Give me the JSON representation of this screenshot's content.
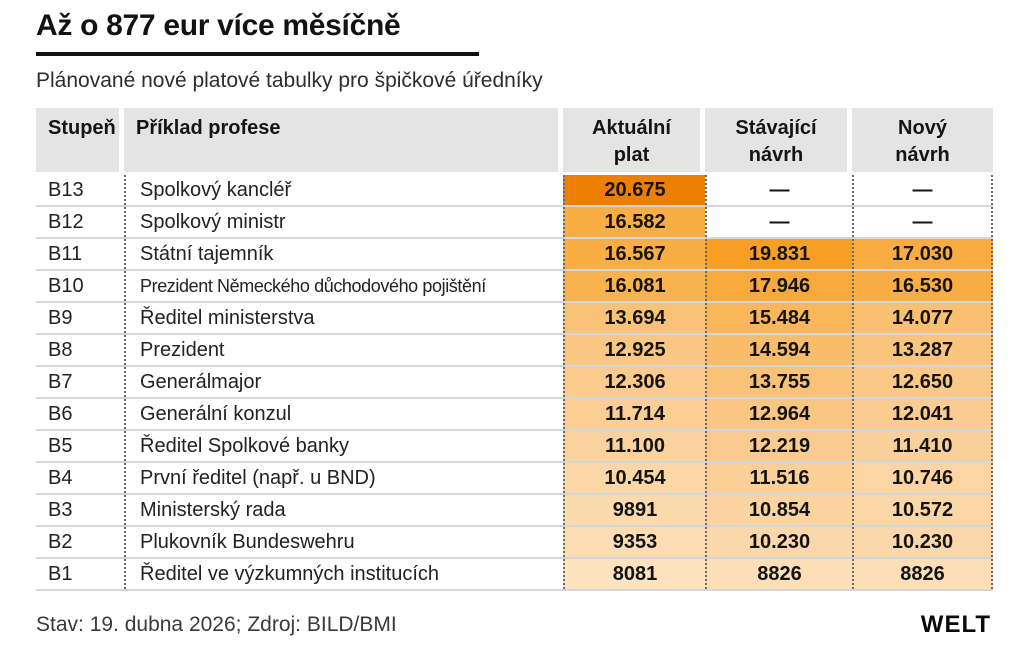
{
  "header": {
    "title": "Až o 877 eur více měsíčně",
    "subtitle": "Plánované nové platové tabulky pro špičkové úředníky"
  },
  "footer": {
    "source": "Stav: 19. dubna 2026; Zdroj: BILD/BMI",
    "brand": "WELT"
  },
  "chart_data": {
    "type": "table",
    "columns": [
      "Stupeň",
      "Příklad profese",
      "Aktuální plat",
      "Stávající návrh",
      "Nový návrh"
    ],
    "heat_scale": {
      "low_value": 8081,
      "high_value": 20675,
      "low_color": "#fce3bd",
      "high_color": "#ed8000"
    },
    "rows": [
      {
        "grade": "B13",
        "profession": "Spolkový kancléř",
        "values": [
          "20.675",
          "—",
          "—"
        ],
        "colors": [
          "#ed8000",
          null,
          null
        ]
      },
      {
        "grade": "B12",
        "profession": "Spolkový ministr",
        "values": [
          "16.582",
          "—",
          "—"
        ],
        "colors": [
          "#f8ae43",
          null,
          null
        ]
      },
      {
        "grade": "B11",
        "profession": "Státní tajemník",
        "values": [
          "16.567",
          "19.831",
          "17.030"
        ],
        "colors": [
          "#f8ae43",
          "#f89e22",
          "#f8ac41"
        ]
      },
      {
        "grade": "B10",
        "profession": "Prezident Německého důchodového pojištění",
        "values": [
          "16.081",
          "17.946",
          "16.530"
        ],
        "colors": [
          "#f8b24e",
          "#f8a93c",
          "#f8ae44"
        ]
      },
      {
        "grade": "B9",
        "profession": "Ředitel ministerstva",
        "values": [
          "13.694",
          "15.484",
          "14.077"
        ],
        "colors": [
          "#f9c277",
          "#f9b65b",
          "#f9c071"
        ]
      },
      {
        "grade": "B8",
        "profession": "Prezident",
        "values": [
          "12.925",
          "14.594",
          "13.287"
        ],
        "colors": [
          "#fac783",
          "#f9bc69",
          "#f9c57d"
        ]
      },
      {
        "grade": "B7",
        "profession": "Generálmajor",
        "values": [
          "12.306",
          "13.755",
          "12.650"
        ],
        "colors": [
          "#facb8d",
          "#f9c276",
          "#fac887"
        ]
      },
      {
        "grade": "B6",
        "profession": "Generální konzul",
        "values": [
          "11.714",
          "12.964",
          "12.041"
        ],
        "colors": [
          "#face95",
          "#fac782",
          "#facc91"
        ]
      },
      {
        "grade": "B5",
        "profession": "Ředitel Spolkové banky",
        "values": [
          "11.100",
          "12.219",
          "11.410"
        ],
        "colors": [
          "#fad29e",
          "#facb8e",
          "#fad09a"
        ]
      },
      {
        "grade": "B4",
        "profession": "První ředitel (např. u BND)",
        "values": [
          "10.454",
          "11.516",
          "10.746"
        ],
        "colors": [
          "#fbd7a8",
          "#fad098",
          "#fbd5a4"
        ]
      },
      {
        "grade": "B3",
        "profession": "Ministerský rada",
        "values": [
          "9891",
          "10.854",
          "10.572"
        ],
        "colors": [
          "#fbdaae",
          "#fbd4a2",
          "#fbd6a6"
        ]
      },
      {
        "grade": "B2",
        "profession": "Plukovník Bundeswehru",
        "values": [
          "9353",
          "10.230",
          "10.230"
        ],
        "colors": [
          "#fcdcb2",
          "#fbd8ab",
          "#fbd8ab"
        ]
      },
      {
        "grade": "B1",
        "profession": "Ředitel ve výzkumných institucích",
        "values": [
          "8081",
          "8826",
          "8826"
        ],
        "colors": [
          "#fce3bd",
          "#fcdfb7",
          "#fcdfb7"
        ]
      }
    ]
  }
}
